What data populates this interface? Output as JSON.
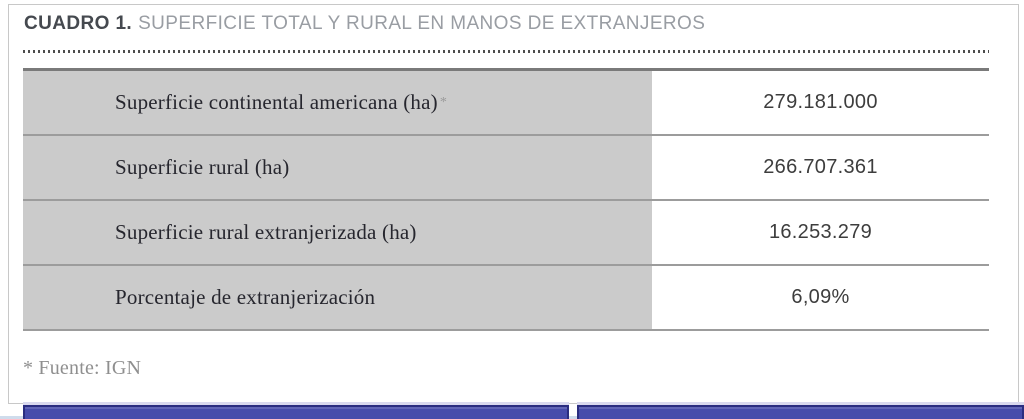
{
  "title": {
    "label": "CUADRO 1.",
    "text": "SUPERFICIE TOTAL Y RURAL EN MANOS DE EXTRANJEROS"
  },
  "table": {
    "rows": [
      {
        "label": "Superficie continental americana (ha)",
        "note_marker": "*",
        "value": "279.181.000"
      },
      {
        "label": "Superficie rural (ha)",
        "note_marker": "",
        "value": "266.707.361"
      },
      {
        "label": "Superficie rural extranjerizada (ha)",
        "note_marker": "",
        "value": "16.253.279"
      },
      {
        "label": "Porcentaje de extranjerización",
        "note_marker": "",
        "value": "6,09%"
      }
    ]
  },
  "footnote": "* Fuente: IGN",
  "chart_data": {
    "type": "table",
    "title": "CUADRO 1. SUPERFICIE TOTAL Y RURAL EN MANOS DE EXTRANJEROS",
    "rows": [
      [
        "Superficie continental americana (ha)*",
        "279.181.000"
      ],
      [
        "Superficie rural (ha)",
        "266.707.361"
      ],
      [
        "Superficie rural extranjerizada (ha)",
        "16.253.279"
      ],
      [
        "Porcentaje de extranjerización",
        "6,09%"
      ]
    ],
    "note": "* Fuente: IGN"
  },
  "colors": {
    "title_label": "#45494f",
    "title_text": "#999da3",
    "dot_color": "#4d4d4d",
    "card_border": "#c8c8c8",
    "table_top_border": "#7a7a7a",
    "row_border": "#9c9c9c",
    "cell_label_bg": "#cbcbcb",
    "label_text": "#26262e",
    "marker_text": "#9a9a9a",
    "value_text": "#3d3d3d",
    "footnote_text": "#8f8f8f",
    "edge_strip": "#cfdcec",
    "bar_fill": "#474cab",
    "bar_border": "#2a2d80",
    "bar_glow": "#d9d9ee"
  }
}
